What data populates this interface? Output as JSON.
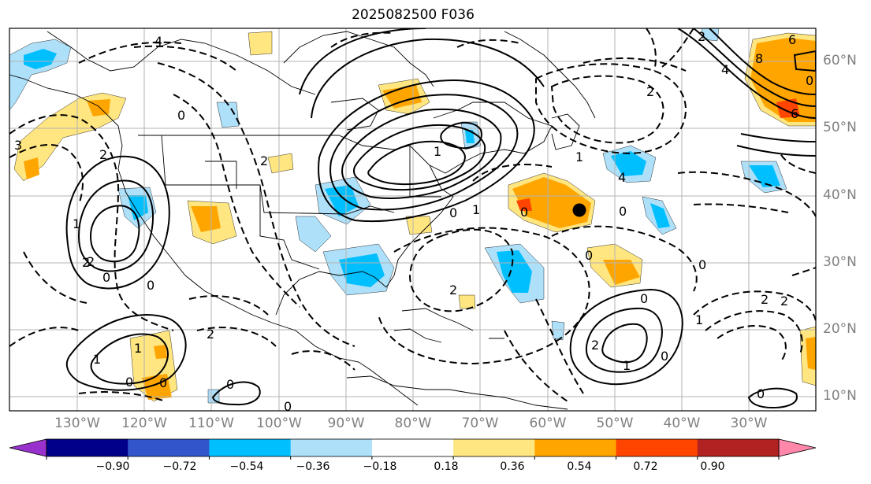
{
  "title": "2025082500 F036",
  "latitude_labels": [
    "60°N",
    "50°N",
    "40°N",
    "30°N",
    "20°N",
    "10°N"
  ],
  "longitude_labels": [
    "130°W",
    "120°W",
    "110°W",
    "100°W",
    "90°W",
    "80°W",
    "70°W",
    "60°W",
    "50°W",
    "40°W",
    "30°W"
  ],
  "colorbar": {
    "tick_labels": [
      "−0.90",
      "−0.72",
      "−0.54",
      "−0.36",
      "−0.18",
      "0.18",
      "0.36",
      "0.54",
      "0.72",
      "0.90"
    ],
    "colors": [
      "#9932cc",
      "#00008b",
      "#3355cc",
      "#00bfff",
      "#aee0fa",
      "#ffffff",
      "#ffe680",
      "#ffa500",
      "#ff4500",
      "#b22222",
      "#ff88aa"
    ],
    "extend": "both"
  },
  "contour_labels": [
    "4",
    "2",
    "0",
    "2",
    "6",
    "8",
    "4",
    "2",
    "1",
    "0",
    "2",
    "2",
    "3",
    "0",
    "1",
    "2",
    "0",
    "1",
    "1",
    "0",
    "0",
    "0",
    "1",
    "0",
    "2",
    "2",
    "0",
    "1",
    "2",
    "1",
    "0",
    "0",
    "4",
    "0",
    "6",
    "0",
    "0",
    "1",
    "0",
    "2",
    "2",
    "0"
  ],
  "marker": "filled black dot near 56°W 38°N"
}
